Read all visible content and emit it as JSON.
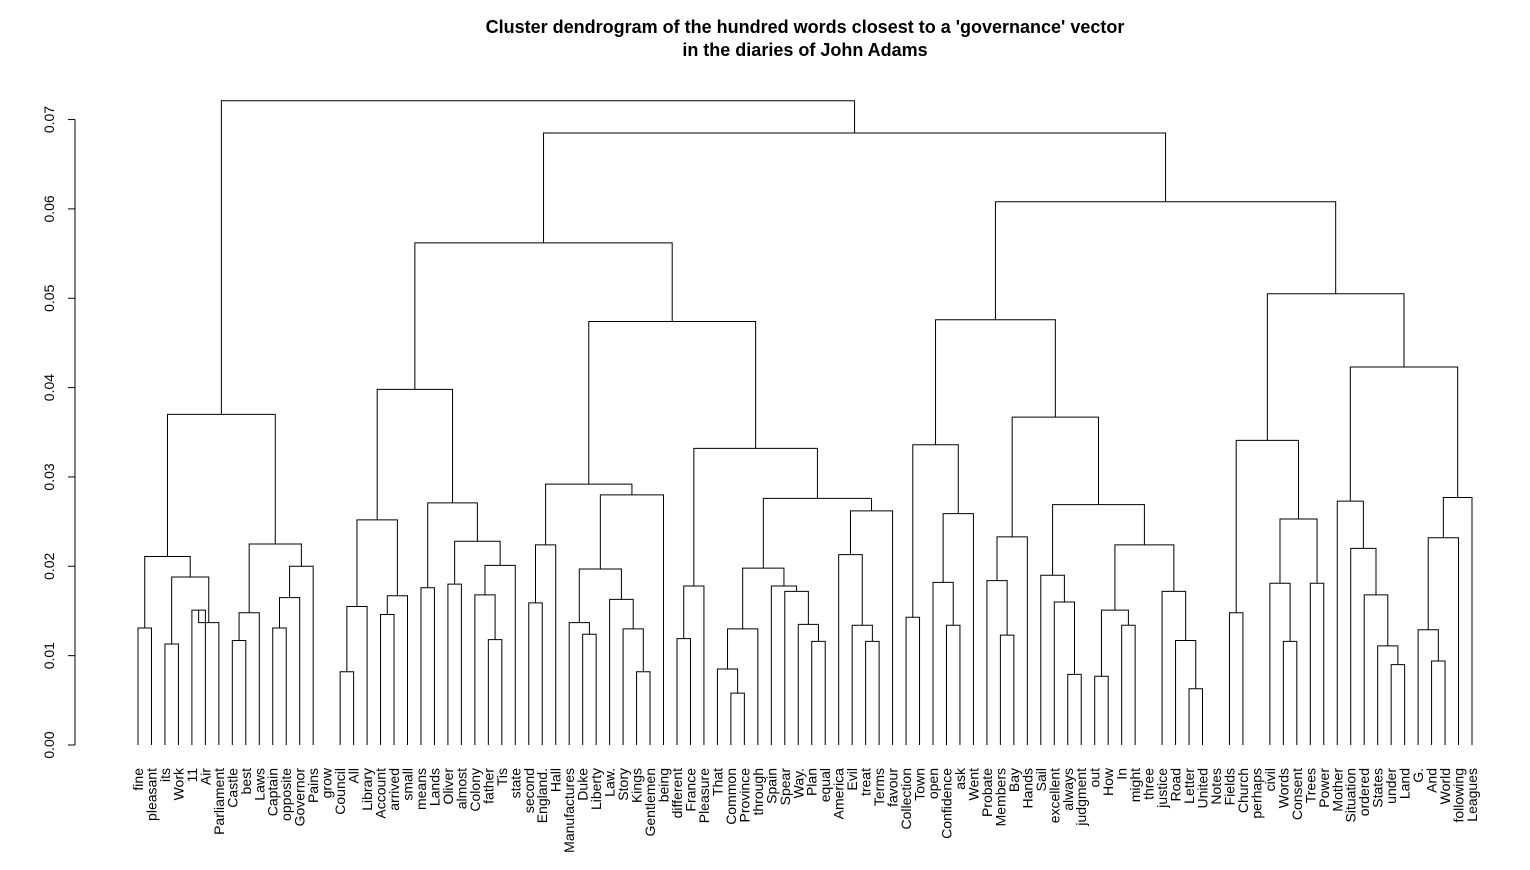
{
  "chart_data": {
    "type": "dendrogram",
    "title": "Cluster dendrogram of the hundred words closest to a 'governance' vector",
    "subtitle": "in the diaries of John Adams",
    "xlabel": "",
    "ylabel": "",
    "ylim": [
      0,
      0.0742
    ],
    "y_ticks": [
      "0.00",
      "0.01",
      "0.02",
      "0.03",
      "0.04",
      "0.05",
      "0.06",
      "0.07"
    ],
    "grid": false,
    "leaves": [
      "fine",
      "pleasant",
      "its",
      "Work",
      "11",
      "Air",
      "Parliament",
      "Castle",
      "best",
      "Laws",
      "Captain",
      "opposite",
      "Governor",
      "Pains",
      "grow",
      "Council",
      "All",
      "Library",
      "Account",
      "arrived",
      "small",
      "means",
      "Lands",
      "Oliver",
      "almost",
      "Colony",
      "father",
      "Tis",
      "state",
      "second",
      "England.",
      "Hall",
      "Manufactures",
      "Duke",
      "Liberty",
      "Law.",
      "Story",
      "Kings",
      "Gentlemen",
      "being",
      "different",
      "France",
      "Pleasure",
      "That",
      "Common",
      "Province",
      "through",
      "Spain",
      "Spear",
      "Way.",
      "Plan",
      "equal",
      "America",
      "Evil",
      "treat",
      "Terms",
      "favour",
      "Collection",
      "Town",
      "open",
      "Confidence",
      "ask",
      "Went",
      "Probate",
      "Members",
      "Bay",
      "Hands",
      "Sail",
      "excellent",
      "always",
      "judgment",
      "out",
      "How",
      "In",
      "might",
      "three",
      "justice",
      "Road",
      "Letter",
      "United",
      "Notes",
      "Fields",
      "Church",
      "perhaps",
      "civil",
      "Words",
      "Consent",
      "Trees",
      "Power",
      "Mother",
      "Situation",
      "ordered",
      "States",
      "under",
      "Land",
      "G.",
      "And",
      "World",
      "following",
      "Leagues"
    ],
    "merges": [
      [
        0,
        1,
        0.0131
      ],
      [
        2,
        3,
        0.0113
      ],
      [
        4,
        5,
        0.0151
      ],
      [
        4,
        6,
        0.0137
      ],
      [
        2,
        4,
        0.0188
      ],
      [
        0,
        2,
        0.0211
      ],
      [
        7,
        8,
        0.0117
      ],
      [
        7,
        9,
        0.0148
      ],
      [
        10,
        11,
        0.0131
      ],
      [
        10,
        12,
        0.0165
      ],
      [
        10,
        13,
        0.02
      ],
      [
        7,
        10,
        0.0225
      ],
      [
        0,
        7,
        0.037
      ],
      [
        15,
        16,
        0.0082
      ],
      [
        15,
        17,
        0.0155
      ],
      [
        18,
        19,
        0.0146
      ],
      [
        18,
        20,
        0.0167
      ],
      [
        15,
        18,
        0.0252
      ],
      [
        21,
        22,
        0.0176
      ],
      [
        23,
        24,
        0.018
      ],
      [
        26,
        27,
        0.0118
      ],
      [
        25,
        26,
        0.0168
      ],
      [
        25,
        28,
        0.0201
      ],
      [
        23,
        25,
        0.0228
      ],
      [
        22,
        23,
        0.0271
      ],
      [
        21,
        22,
        0.0353
      ],
      [
        15,
        21,
        0.0398
      ],
      [
        29,
        30,
        0.0159
      ],
      [
        29,
        31,
        0.0224
      ],
      [
        33,
        34,
        0.0124
      ],
      [
        32,
        33,
        0.0137
      ],
      [
        37,
        38,
        0.0082
      ],
      [
        36,
        37,
        0.013
      ],
      [
        35,
        36,
        0.0163
      ],
      [
        32,
        35,
        0.0197
      ],
      [
        32,
        39,
        0.028
      ],
      [
        29,
        32,
        0.0292
      ],
      [
        40,
        41,
        0.0119
      ],
      [
        40,
        42,
        0.0178
      ],
      [
        44,
        45,
        0.0058
      ],
      [
        43,
        44,
        0.0085
      ],
      [
        43,
        46,
        0.013
      ],
      [
        50,
        51,
        0.0116
      ],
      [
        49,
        50,
        0.0135
      ],
      [
        48,
        49,
        0.0172
      ],
      [
        47,
        48,
        0.0178
      ],
      [
        43,
        47,
        0.0198
      ],
      [
        54,
        55,
        0.0116
      ],
      [
        53,
        54,
        0.0134
      ],
      [
        52,
        53,
        0.0213
      ],
      [
        52,
        56,
        0.0262
      ],
      [
        43,
        52,
        0.0276
      ],
      [
        40,
        43,
        0.0332
      ],
      [
        29,
        40,
        0.0474
      ],
      [
        15,
        29,
        0.0562
      ],
      [
        57,
        58,
        0.0143
      ],
      [
        60,
        61,
        0.0134
      ],
      [
        59,
        60,
        0.0182
      ],
      [
        59,
        62,
        0.0259
      ],
      [
        57,
        59,
        0.0336
      ],
      [
        64,
        65,
        0.0123
      ],
      [
        63,
        64,
        0.0184
      ],
      [
        63,
        66,
        0.0233
      ],
      [
        69,
        70,
        0.0079
      ],
      [
        68,
        69,
        0.016
      ],
      [
        67,
        68,
        0.019
      ],
      [
        71,
        72,
        0.0077
      ],
      [
        73,
        74,
        0.0134
      ],
      [
        71,
        73,
        0.0151
      ],
      [
        78,
        79,
        0.0063
      ],
      [
        77,
        78,
        0.0117
      ],
      [
        76,
        77,
        0.0172
      ],
      [
        71,
        76,
        0.0224
      ],
      [
        67,
        71,
        0.0269
      ],
      [
        63,
        67,
        0.0367
      ],
      [
        57,
        63,
        0.0476
      ],
      [
        81,
        82,
        0.0148
      ],
      [
        85,
        86,
        0.0116
      ],
      [
        84,
        85,
        0.0181
      ],
      [
        87,
        88,
        0.0181
      ],
      [
        84,
        87,
        0.0253
      ],
      [
        81,
        84,
        0.0341
      ],
      [
        93,
        94,
        0.009
      ],
      [
        92,
        93,
        0.0111
      ],
      [
        91,
        92,
        0.0168
      ],
      [
        90,
        91,
        0.022
      ],
      [
        89,
        90,
        0.0273
      ],
      [
        96,
        97,
        0.0094
      ],
      [
        95,
        96,
        0.0129
      ],
      [
        95,
        98,
        0.0232
      ],
      [
        95,
        99,
        0.0277
      ],
      [
        89,
        95,
        0.0423
      ],
      [
        81,
        89,
        0.0505
      ],
      [
        57,
        81,
        0.0608
      ],
      [
        15,
        57,
        0.0685
      ],
      [
        0,
        15,
        0.0721
      ]
    ]
  }
}
